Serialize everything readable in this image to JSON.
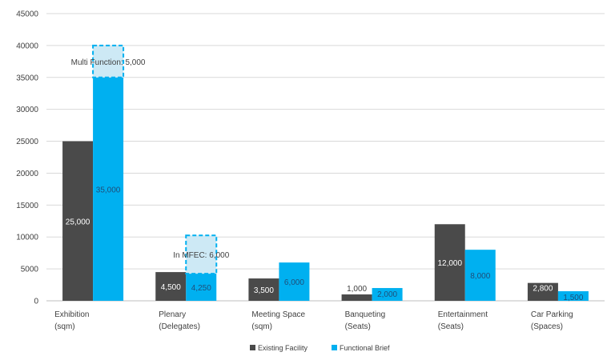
{
  "chart_data": {
    "type": "bar",
    "categories": [
      [
        "Exhibition",
        "(sqm)"
      ],
      [
        "Plenary",
        "(Delegates)"
      ],
      [
        "Meeting Space",
        "(sqm)"
      ],
      [
        "Banqueting",
        "(Seats)"
      ],
      [
        "Entertainment",
        "(Seats)"
      ],
      [
        "Car Parking",
        "(Spaces)"
      ]
    ],
    "series": [
      {
        "name": "Existing Facility",
        "color": "#4a4a4a",
        "values": [
          25000,
          4500,
          3500,
          1000,
          12000,
          2800
        ],
        "labels": [
          "25,000",
          "4,500",
          "3,500",
          "1,000",
          "12,000",
          "2,800"
        ]
      },
      {
        "name": "Functional Brief",
        "color": "#00b0f0",
        "values": [
          35000,
          4250,
          6000,
          2000,
          8000,
          1500
        ],
        "labels": [
          "35,000",
          "4,250",
          "6,000",
          "2,000",
          "8,000",
          "1,500"
        ]
      }
    ],
    "stacked_extras": [
      {
        "category_index": 0,
        "base": 35000,
        "value": 5000,
        "label": "Multi Function: 5,000"
      },
      {
        "category_index": 1,
        "base": 4250,
        "value": 6000,
        "label": "In MFEC: 6,000"
      }
    ],
    "ylim": [
      0,
      45000
    ],
    "yticks": [
      0,
      5000,
      10000,
      15000,
      20000,
      25000,
      30000,
      35000,
      40000,
      45000
    ],
    "grid": true,
    "legend_position": "bottom"
  }
}
